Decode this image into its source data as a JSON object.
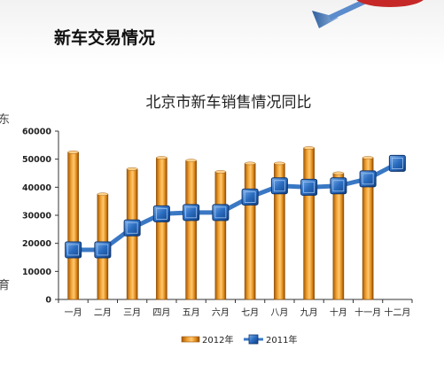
{
  "slide": {
    "title": "新车交易情况",
    "edge_glyphs": [
      "东",
      "育"
    ]
  },
  "colors": {
    "bar": "#e8901a",
    "bar_dark": "#9a5208",
    "line": "#3a78c4",
    "marker": "#1d5fb0",
    "arrow": "#4a7fbf",
    "accent": "#c62828"
  },
  "chart_data": {
    "type": "bar",
    "title": "北京市新车销售情况同比",
    "categories": [
      "一月",
      "二月",
      "三月",
      "四月",
      "五月",
      "六月",
      "七月",
      "八月",
      "九月",
      "十月",
      "十一月",
      "十二月"
    ],
    "series": [
      {
        "name": "2012年",
        "type": "bar",
        "values": [
          52500,
          37500,
          46500,
          50500,
          49500,
          45500,
          48500,
          48500,
          54000,
          45000,
          50500,
          null
        ]
      },
      {
        "name": "2011年",
        "type": "line",
        "values": [
          17700,
          17700,
          25500,
          30500,
          31000,
          31000,
          36500,
          40500,
          40000,
          40500,
          43000,
          48500
        ]
      }
    ],
    "ylim": [
      0,
      60000
    ],
    "yticks": [
      0,
      10000,
      20000,
      30000,
      40000,
      50000,
      60000
    ],
    "xlabel": "",
    "ylabel": "",
    "grid": false,
    "legend_position": "bottom"
  }
}
